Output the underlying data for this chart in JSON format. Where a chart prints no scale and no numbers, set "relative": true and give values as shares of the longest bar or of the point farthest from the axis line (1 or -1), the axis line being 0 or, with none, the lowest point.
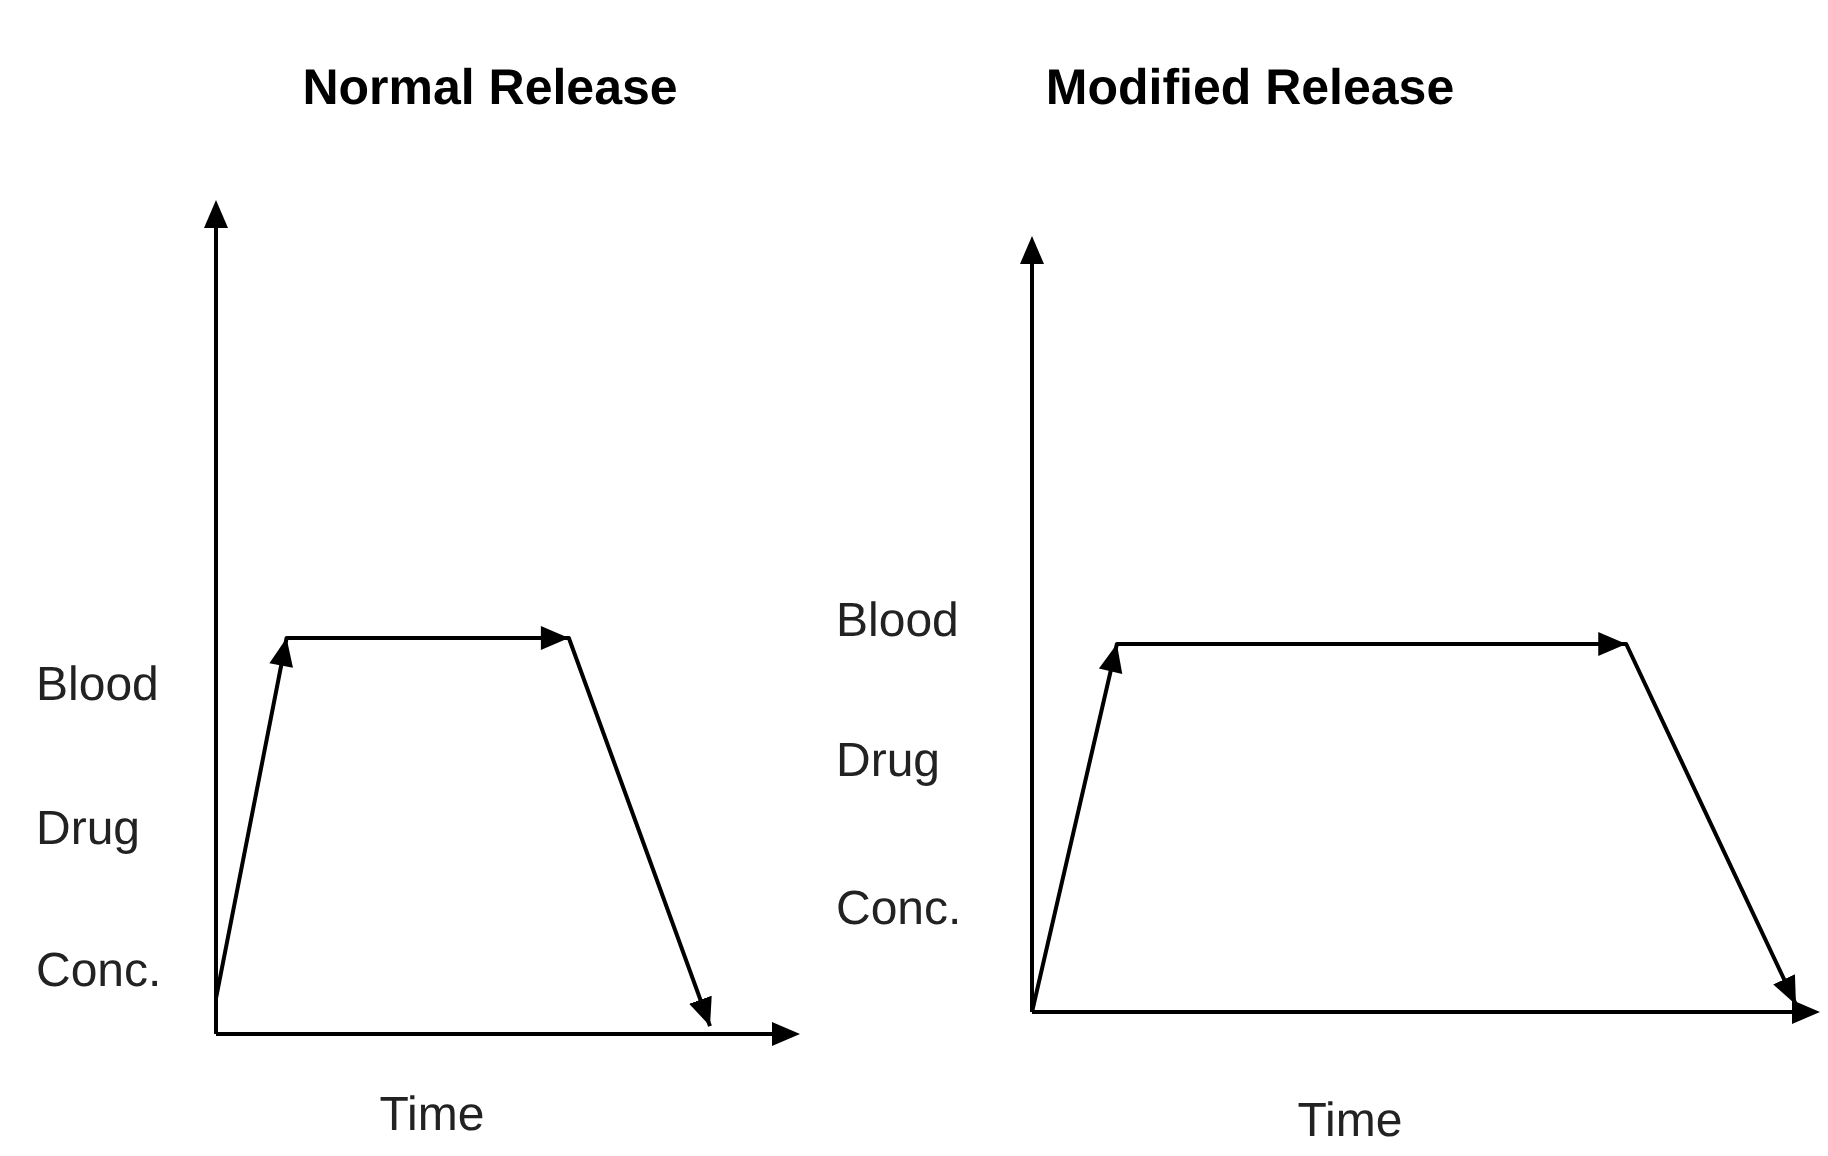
{
  "chart_data": [
    {
      "type": "line",
      "title": "Normal Release",
      "xlabel": "Time",
      "ylabel": "Blood Drug Conc.",
      "relative": true,
      "categories": [
        null,
        null,
        null,
        null,
        null,
        null,
        null,
        null
      ],
      "marker": "none",
      "line_style": "solid",
      "series": [
        {
          "color": "#000000",
          "values": [
            0.09,
            1,
            1,
            1,
            1,
            1,
            0.51,
            0.02
          ]
        }
      ]
    },
    {
      "type": "line",
      "title": "Modified Release",
      "xlabel": "Time",
      "ylabel": "Blood Drug Conc.",
      "relative": true,
      "categories": [
        null,
        null,
        null,
        null,
        null,
        null,
        null,
        null,
        null,
        null
      ],
      "marker": "none",
      "line_style": "solid",
      "series": [
        {
          "color": "#000000",
          "values": [
            0,
            1,
            1,
            1,
            1,
            1,
            1,
            1,
            0.51,
            0.02
          ]
        }
      ]
    }
  ]
}
